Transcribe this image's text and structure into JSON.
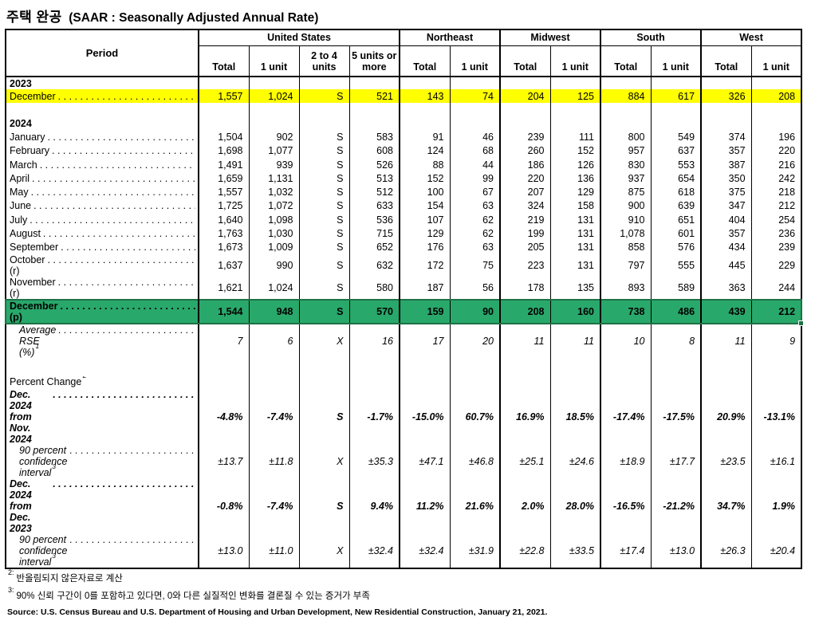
{
  "title": {
    "korean": "주택 완공",
    "english": "(SAAR : Seasonally Adjusted Annual Rate)"
  },
  "colors": {
    "highlight_yellow": "#FFFF00",
    "highlight_green_fill": "#29A86B",
    "highlight_green_border": "#1E7145"
  },
  "table": {
    "period_header": "Period",
    "regions": [
      {
        "label": "United States",
        "cols": [
          "Total",
          "1 unit",
          "2 to 4 units",
          "5 units or more"
        ]
      },
      {
        "label": "Northeast",
        "cols": [
          "Total",
          "1 unit"
        ]
      },
      {
        "label": "Midwest",
        "cols": [
          "Total",
          "1 unit"
        ]
      },
      {
        "label": "South",
        "cols": [
          "Total",
          "1 unit"
        ]
      },
      {
        "label": "West",
        "cols": [
          "Total",
          "1 unit"
        ]
      }
    ],
    "rows": [
      {
        "type": "year",
        "label": "2023"
      },
      {
        "type": "month",
        "label": "December",
        "dots": true,
        "highlight": "yellow",
        "values": [
          "1,557",
          "1,024",
          "S",
          "521",
          "143",
          "74",
          "204",
          "125",
          "884",
          "617",
          "326",
          "208"
        ]
      },
      {
        "type": "spacer"
      },
      {
        "type": "year",
        "label": "2024"
      },
      {
        "type": "month",
        "label": "January",
        "dots": true,
        "values": [
          "1,504",
          "902",
          "S",
          "583",
          "91",
          "46",
          "239",
          "111",
          "800",
          "549",
          "374",
          "196"
        ]
      },
      {
        "type": "month",
        "label": "February",
        "dots": true,
        "values": [
          "1,698",
          "1,077",
          "S",
          "608",
          "124",
          "68",
          "260",
          "152",
          "957",
          "637",
          "357",
          "220"
        ]
      },
      {
        "type": "month",
        "label": "March",
        "dots": true,
        "values": [
          "1,491",
          "939",
          "S",
          "526",
          "88",
          "44",
          "186",
          "126",
          "830",
          "553",
          "387",
          "216"
        ]
      },
      {
        "type": "month",
        "label": "April",
        "dots": true,
        "values": [
          "1,659",
          "1,131",
          "S",
          "513",
          "152",
          "99",
          "220",
          "136",
          "937",
          "654",
          "350",
          "242"
        ]
      },
      {
        "type": "month",
        "label": "May",
        "dots": true,
        "values": [
          "1,557",
          "1,032",
          "S",
          "512",
          "100",
          "67",
          "207",
          "129",
          "875",
          "618",
          "375",
          "218"
        ]
      },
      {
        "type": "month",
        "label": "June",
        "dots": true,
        "values": [
          "1,725",
          "1,072",
          "S",
          "633",
          "154",
          "63",
          "324",
          "158",
          "900",
          "639",
          "347",
          "212"
        ]
      },
      {
        "type": "month",
        "label": "July",
        "dots": true,
        "values": [
          "1,640",
          "1,098",
          "S",
          "536",
          "107",
          "62",
          "219",
          "131",
          "910",
          "651",
          "404",
          "254"
        ]
      },
      {
        "type": "month",
        "label": "August",
        "dots": true,
        "values": [
          "1,763",
          "1,030",
          "S",
          "715",
          "129",
          "62",
          "199",
          "131",
          "1,078",
          "601",
          "357",
          "236"
        ]
      },
      {
        "type": "month",
        "label": "September",
        "dots": true,
        "values": [
          "1,673",
          "1,009",
          "S",
          "652",
          "176",
          "63",
          "205",
          "131",
          "858",
          "576",
          "434",
          "239"
        ]
      },
      {
        "type": "month",
        "label": "October (r)",
        "dots": true,
        "values": [
          "1,637",
          "990",
          "S",
          "632",
          "172",
          "75",
          "223",
          "131",
          "797",
          "555",
          "445",
          "229"
        ]
      },
      {
        "type": "month",
        "label": "November (r)",
        "dots": true,
        "values": [
          "1,621",
          "1,024",
          "S",
          "580",
          "187",
          "56",
          "178",
          "135",
          "893",
          "589",
          "363",
          "244"
        ]
      },
      {
        "type": "month",
        "label": "December (p)",
        "dots": true,
        "highlight": "green",
        "values": [
          "1,544",
          "948",
          "S",
          "570",
          "159",
          "90",
          "208",
          "160",
          "738",
          "486",
          "439",
          "212"
        ]
      },
      {
        "type": "stat",
        "label": "Average RSE (%)",
        "sup": "1",
        "dots": true,
        "values": [
          "7",
          "6",
          "X",
          "16",
          "17",
          "20",
          "11",
          "11",
          "10",
          "8",
          "11",
          "9"
        ]
      },
      {
        "type": "gap"
      },
      {
        "type": "section",
        "label": "Percent Change",
        "sup": "2"
      },
      {
        "type": "pct",
        "label": "Dec. 2024 from Nov. 2024",
        "dots": true,
        "values": [
          "-4.8%",
          "-7.4%",
          "S",
          "-1.7%",
          "-15.0%",
          "60.7%",
          "16.9%",
          "18.5%",
          "-17.4%",
          "-17.5%",
          "20.9%",
          "-13.1%"
        ]
      },
      {
        "type": "ci",
        "label": "90 percent confidence interval",
        "sup": "3",
        "dots": true,
        "values": [
          "±13.7",
          "±11.8",
          "X",
          "±35.3",
          "±47.1",
          "±46.8",
          "±25.1",
          "±24.6",
          "±18.9",
          "±17.7",
          "±23.5",
          "±16.1"
        ]
      },
      {
        "type": "pct",
        "label": "Dec. 2024 from Dec. 2023",
        "dots": true,
        "values": [
          "-0.8%",
          "-7.4%",
          "S",
          "9.4%",
          "11.2%",
          "21.6%",
          "2.0%",
          "28.0%",
          "-16.5%",
          "-21.2%",
          "34.7%",
          "1.9%"
        ]
      },
      {
        "type": "ci",
        "label": "90 percent confidence interval",
        "sup": "3",
        "dots": true,
        "values": [
          "±13.0",
          "±11.0",
          "X",
          "±32.4",
          "±32.4",
          "±31.9",
          "±22.8",
          "±33.5",
          "±17.4",
          "±13.0",
          "±26.3",
          "±20.4"
        ]
      }
    ]
  },
  "footnotes": [
    {
      "sup": "2:",
      "text": "반올림되지 않은자료로 계산"
    },
    {
      "sup": "3:",
      "text": "90% 신뢰 구간이 0를 포함하고 있다면, 0와 다른 실질적인 변화를 결론질 수 있는 증거가 부족"
    }
  ],
  "source": "Source: U.S. Census Bureau and U.S. Department of Housing and Urban Development, New Residential Construction, January 21, 2021."
}
